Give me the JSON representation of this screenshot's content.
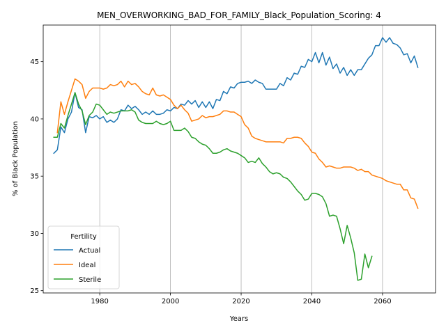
{
  "chart_data": {
    "type": "line",
    "title": "MEN_OVERWORKING_BAD_FOR_FAMILY_Black_Population_Scoring: 4",
    "xlabel": "Years",
    "ylabel": "% of Black Population",
    "xlim": [
      1964,
      2075
    ],
    "ylim": [
      24.8,
      48.2
    ],
    "xticks": [
      1980,
      2000,
      2020,
      2040,
      2060
    ],
    "yticks": [
      25,
      30,
      35,
      40,
      45
    ],
    "grid": "x-only",
    "legend": {
      "title": "Fertility",
      "location": "lower-left"
    },
    "series": [
      {
        "name": "Actual",
        "color": "#1f77b4",
        "x": [
          1967,
          1968,
          1969,
          1970,
          1971,
          1972,
          1973,
          1974,
          1975,
          1976,
          1977,
          1978,
          1979,
          1980,
          1981,
          1982,
          1983,
          1984,
          1985,
          1986,
          1987,
          1988,
          1989,
          1990,
          1991,
          1992,
          1993,
          1994,
          1995,
          1996,
          1997,
          1998,
          1999,
          2000,
          2001,
          2002,
          2003,
          2004,
          2005,
          2006,
          2007,
          2008,
          2009,
          2010,
          2011,
          2012,
          2013,
          2014,
          2015,
          2016,
          2017,
          2018,
          2019,
          2020,
          2021,
          2022,
          2023,
          2024,
          2025,
          2026,
          2027,
          2028,
          2029,
          2030,
          2031,
          2032,
          2033,
          2034,
          2035,
          2036,
          2037,
          2038,
          2039,
          2040,
          2041,
          2042,
          2043,
          2044,
          2045,
          2046,
          2047,
          2048,
          2049,
          2050,
          2051,
          2052,
          2053,
          2054,
          2055,
          2056,
          2057,
          2058,
          2059,
          2060,
          2061,
          2062,
          2063,
          2064,
          2065,
          2066,
          2067,
          2068,
          2069,
          2070
        ],
        "y": [
          37.0,
          37.3,
          39.3,
          38.8,
          40.0,
          40.6,
          42.3,
          41.0,
          40.8,
          38.8,
          40.2,
          40.1,
          40.3,
          40.0,
          40.2,
          39.7,
          39.9,
          39.7,
          40.0,
          40.8,
          40.7,
          41.2,
          40.9,
          41.1,
          40.8,
          40.4,
          40.6,
          40.4,
          40.7,
          40.4,
          40.4,
          40.5,
          40.8,
          40.7,
          41.0,
          40.9,
          41.3,
          41.2,
          41.6,
          41.3,
          41.6,
          41.0,
          41.5,
          41.0,
          41.5,
          40.9,
          41.7,
          41.6,
          42.4,
          42.2,
          42.8,
          42.7,
          43.1,
          43.2,
          43.2,
          43.3,
          43.1,
          43.4,
          43.2,
          43.1,
          42.6,
          42.6,
          42.6,
          42.6,
          43.1,
          42.9,
          43.6,
          43.4,
          44.0,
          43.9,
          44.6,
          44.5,
          45.2,
          45.0,
          45.8,
          44.9,
          45.8,
          44.7,
          45.4,
          44.4,
          44.8,
          44.0,
          44.5,
          43.8,
          44.3,
          43.8,
          44.3,
          44.3,
          44.8,
          45.3,
          45.6,
          46.4,
          46.4,
          47.1,
          46.7,
          47.1,
          46.6,
          46.5,
          46.2,
          45.6,
          45.7,
          44.9,
          45.5,
          44.5
        ]
      },
      {
        "name": "Ideal",
        "color": "#ff7f0e",
        "x": [
          1968,
          1969,
          1970,
          1971,
          1972,
          1973,
          1974,
          1975,
          1976,
          1977,
          1978,
          1979,
          1980,
          1981,
          1982,
          1983,
          1984,
          1985,
          1986,
          1987,
          1988,
          1989,
          1990,
          1991,
          1992,
          1993,
          1994,
          1995,
          1996,
          1997,
          1998,
          1999,
          2000,
          2001,
          2002,
          2003,
          2004,
          2005,
          2006,
          2007,
          2008,
          2009,
          2010,
          2011,
          2012,
          2013,
          2014,
          2015,
          2016,
          2017,
          2018,
          2019,
          2020,
          2021,
          2022,
          2023,
          2024,
          2025,
          2026,
          2027,
          2028,
          2029,
          2030,
          2031,
          2032,
          2033,
          2034,
          2035,
          2036,
          2037,
          2038,
          2039,
          2040,
          2041,
          2042,
          2043,
          2044,
          2045,
          2046,
          2047,
          2048,
          2049,
          2050,
          2051,
          2052,
          2053,
          2054,
          2055,
          2056,
          2057,
          2058,
          2059,
          2060,
          2061,
          2062,
          2063,
          2064,
          2065,
          2066,
          2067,
          2068,
          2069,
          2070
        ],
        "y": [
          38.8,
          41.5,
          40.4,
          41.5,
          42.5,
          43.5,
          43.3,
          43.0,
          41.8,
          42.4,
          42.7,
          42.7,
          42.7,
          42.6,
          42.7,
          43.0,
          42.9,
          43.0,
          43.3,
          42.8,
          43.3,
          43.0,
          43.1,
          42.8,
          42.4,
          42.2,
          42.1,
          42.7,
          42.1,
          42.0,
          42.1,
          41.9,
          41.7,
          41.2,
          40.9,
          41.2,
          40.8,
          40.5,
          39.8,
          39.9,
          40.0,
          40.3,
          40.1,
          40.2,
          40.2,
          40.3,
          40.4,
          40.7,
          40.7,
          40.6,
          40.6,
          40.4,
          40.2,
          39.5,
          39.2,
          38.5,
          38.3,
          38.2,
          38.1,
          38.0,
          38.0,
          38.0,
          38.0,
          38.0,
          37.9,
          38.3,
          38.3,
          38.4,
          38.4,
          38.3,
          37.9,
          37.6,
          37.1,
          37.0,
          36.5,
          36.2,
          35.8,
          35.9,
          35.8,
          35.7,
          35.7,
          35.8,
          35.8,
          35.8,
          35.7,
          35.5,
          35.6,
          35.4,
          35.4,
          35.1,
          35.0,
          34.9,
          34.8,
          34.6,
          34.5,
          34.4,
          34.3,
          34.3,
          33.8,
          33.8,
          33.1,
          33.0,
          32.2
        ]
      },
      {
        "name": "Sterile",
        "color": "#2ca02c",
        "x": [
          1967,
          1968,
          1969,
          1970,
          1971,
          1972,
          1973,
          1974,
          1975,
          1976,
          1977,
          1978,
          1979,
          1980,
          1981,
          1982,
          1983,
          1984,
          1985,
          1986,
          1987,
          1988,
          1989,
          1990,
          1991,
          1992,
          1993,
          1994,
          1995,
          1996,
          1997,
          1998,
          1999,
          2000,
          2001,
          2002,
          2003,
          2004,
          2005,
          2006,
          2007,
          2008,
          2009,
          2010,
          2011,
          2012,
          2013,
          2014,
          2015,
          2016,
          2017,
          2018,
          2019,
          2020,
          2021,
          2022,
          2023,
          2024,
          2025,
          2026,
          2027,
          2028,
          2029,
          2030,
          2031,
          2032,
          2033,
          2034,
          2035,
          2036,
          2037,
          2038,
          2039,
          2040,
          2041,
          2042,
          2043,
          2044,
          2045,
          2046,
          2047,
          2048,
          2049,
          2050,
          2051,
          2052,
          2053,
          2054,
          2055,
          2056,
          2057
        ],
        "y": [
          38.4,
          38.4,
          39.6,
          39.2,
          40.3,
          41.3,
          42.3,
          41.3,
          40.7,
          39.5,
          40.3,
          40.6,
          41.3,
          41.2,
          40.8,
          40.4,
          40.6,
          40.5,
          40.6,
          40.7,
          40.7,
          40.7,
          40.8,
          40.6,
          39.9,
          39.7,
          39.6,
          39.6,
          39.6,
          39.8,
          39.6,
          39.5,
          39.6,
          39.8,
          39.0,
          39.0,
          39.0,
          39.2,
          38.9,
          38.4,
          38.3,
          38.0,
          37.8,
          37.7,
          37.4,
          37.0,
          37.0,
          37.1,
          37.3,
          37.4,
          37.2,
          37.1,
          37.0,
          36.8,
          36.6,
          36.2,
          36.3,
          36.2,
          36.6,
          36.1,
          35.8,
          35.4,
          35.2,
          35.3,
          35.2,
          34.9,
          34.8,
          34.5,
          34.1,
          33.7,
          33.4,
          32.9,
          33.0,
          33.5,
          33.5,
          33.4,
          33.2,
          32.6,
          31.5,
          31.6,
          31.5,
          30.4,
          29.1,
          30.7,
          29.6,
          28.3,
          25.9,
          26.0,
          28.2,
          27.0,
          28.0
        ]
      }
    ]
  }
}
